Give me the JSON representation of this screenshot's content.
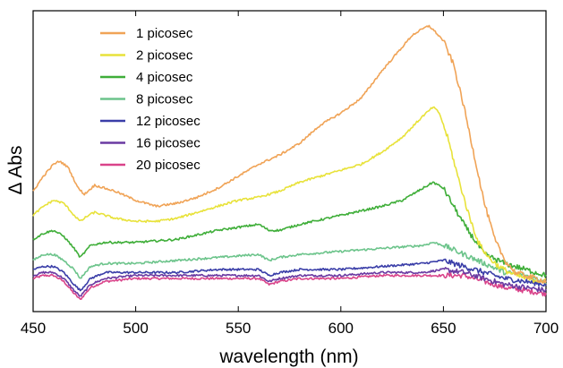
{
  "chart_data": {
    "type": "line",
    "xlabel": "wavelength (nm)",
    "ylabel": "Δ Abs",
    "xlim": [
      450,
      700
    ],
    "ylim": [
      0,
      1
    ],
    "xticks": [
      "450",
      "500",
      "550",
      "600",
      "650",
      "700"
    ],
    "yticks_shown": false,
    "grid": false,
    "legend_position": "top-left",
    "series": [
      {
        "name": "1 picosec",
        "color": "#f0a356",
        "x": [
          450,
          455,
          460,
          463,
          467,
          472,
          475,
          480,
          490,
          500,
          510,
          520,
          530,
          540,
          550,
          560,
          570,
          580,
          590,
          600,
          610,
          620,
          630,
          635,
          640,
          643,
          646,
          650,
          655,
          660,
          665,
          670,
          675,
          680,
          685,
          690,
          700
        ],
        "y": [
          0.4,
          0.45,
          0.49,
          0.5,
          0.48,
          0.41,
          0.39,
          0.42,
          0.4,
          0.37,
          0.35,
          0.36,
          0.38,
          0.41,
          0.45,
          0.49,
          0.52,
          0.56,
          0.62,
          0.66,
          0.71,
          0.8,
          0.88,
          0.92,
          0.94,
          0.95,
          0.93,
          0.9,
          0.82,
          0.68,
          0.52,
          0.36,
          0.24,
          0.17,
          0.13,
          0.12,
          0.1
        ]
      },
      {
        "name": "2 picosec",
        "color": "#e8e23a",
        "x": [
          450,
          455,
          460,
          465,
          470,
          473,
          477,
          480,
          490,
          500,
          510,
          520,
          530,
          540,
          550,
          560,
          570,
          580,
          590,
          600,
          610,
          620,
          630,
          640,
          645,
          648,
          652,
          657,
          662,
          667,
          672,
          677,
          682,
          690,
          700
        ],
        "y": [
          0.32,
          0.35,
          0.37,
          0.36,
          0.32,
          0.3,
          0.32,
          0.33,
          0.31,
          0.3,
          0.3,
          0.31,
          0.33,
          0.35,
          0.37,
          0.38,
          0.4,
          0.43,
          0.45,
          0.47,
          0.49,
          0.53,
          0.58,
          0.65,
          0.68,
          0.66,
          0.58,
          0.45,
          0.33,
          0.23,
          0.18,
          0.15,
          0.13,
          0.11,
          0.1
        ]
      },
      {
        "name": "4 picosec",
        "color": "#3fae39",
        "x": [
          450,
          455,
          460,
          465,
          470,
          473,
          478,
          485,
          500,
          520,
          540,
          560,
          565,
          570,
          580,
          600,
          620,
          630,
          640,
          645,
          650,
          655,
          660,
          665,
          670,
          680,
          690,
          700
        ],
        "y": [
          0.24,
          0.26,
          0.27,
          0.25,
          0.21,
          0.18,
          0.22,
          0.23,
          0.23,
          0.24,
          0.27,
          0.29,
          0.27,
          0.27,
          0.29,
          0.32,
          0.35,
          0.37,
          0.41,
          0.43,
          0.41,
          0.35,
          0.29,
          0.24,
          0.19,
          0.16,
          0.14,
          0.12
        ]
      },
      {
        "name": "8 picosec",
        "color": "#6cc48b",
        "x": [
          450,
          455,
          460,
          465,
          470,
          473,
          478,
          485,
          500,
          520,
          540,
          560,
          565,
          570,
          580,
          600,
          620,
          640,
          645,
          650,
          660,
          670,
          680,
          690,
          700
        ],
        "y": [
          0.17,
          0.19,
          0.19,
          0.17,
          0.14,
          0.11,
          0.15,
          0.16,
          0.16,
          0.17,
          0.18,
          0.19,
          0.17,
          0.18,
          0.19,
          0.2,
          0.21,
          0.22,
          0.23,
          0.22,
          0.19,
          0.16,
          0.13,
          0.12,
          0.1
        ]
      },
      {
        "name": "12 picosec",
        "color": "#3a3ea8",
        "x": [
          450,
          455,
          460,
          465,
          470,
          473,
          478,
          485,
          500,
          520,
          540,
          560,
          565,
          570,
          580,
          600,
          620,
          640,
          650,
          660,
          670,
          680,
          690,
          700
        ],
        "y": [
          0.14,
          0.15,
          0.15,
          0.13,
          0.09,
          0.07,
          0.11,
          0.13,
          0.13,
          0.13,
          0.14,
          0.14,
          0.12,
          0.13,
          0.14,
          0.14,
          0.15,
          0.16,
          0.17,
          0.15,
          0.13,
          0.11,
          0.1,
          0.09
        ]
      },
      {
        "name": "16 picosec",
        "color": "#6a3aa2",
        "x": [
          450,
          455,
          460,
          465,
          470,
          473,
          478,
          485,
          500,
          520,
          540,
          560,
          565,
          570,
          580,
          600,
          620,
          640,
          650,
          660,
          670,
          680,
          690,
          700
        ],
        "y": [
          0.12,
          0.13,
          0.13,
          0.11,
          0.07,
          0.05,
          0.09,
          0.11,
          0.12,
          0.12,
          0.12,
          0.12,
          0.1,
          0.11,
          0.12,
          0.12,
          0.13,
          0.13,
          0.14,
          0.13,
          0.11,
          0.09,
          0.08,
          0.07
        ]
      },
      {
        "name": "20 picosec",
        "color": "#d9438a",
        "x": [
          450,
          455,
          460,
          465,
          470,
          473,
          478,
          485,
          500,
          520,
          540,
          560,
          565,
          570,
          580,
          600,
          620,
          640,
          650,
          660,
          670,
          680,
          690,
          700
        ],
        "y": [
          0.11,
          0.12,
          0.12,
          0.1,
          0.06,
          0.04,
          0.08,
          0.1,
          0.11,
          0.11,
          0.11,
          0.11,
          0.09,
          0.1,
          0.11,
          0.11,
          0.12,
          0.12,
          0.12,
          0.12,
          0.1,
          0.08,
          0.07,
          0.06
        ]
      }
    ]
  }
}
